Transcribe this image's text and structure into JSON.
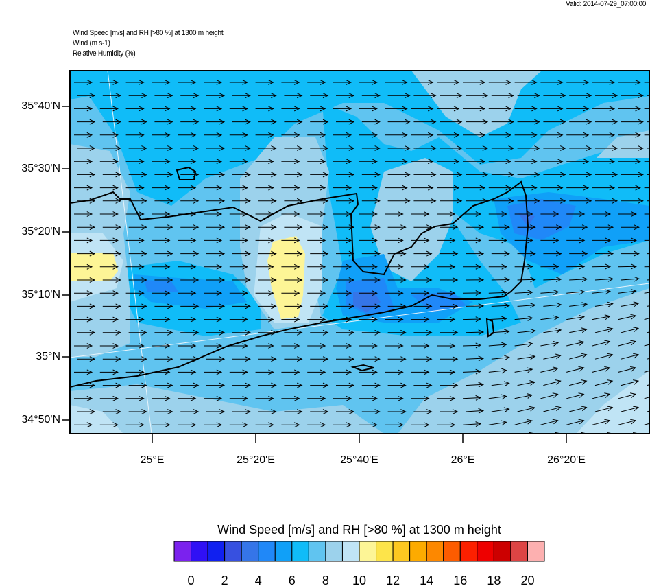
{
  "valid_time": "Valid: 2014-07-29_07:00:00",
  "header": {
    "line1": "Wind Speed [m/s] and RH [>80 %] at 1300 m height",
    "line2": "Wind   (m s-1)",
    "line3": "Relative Humidity   (%)"
  },
  "map": {
    "lat_ticks": [
      "35°40'N",
      "35°30'N",
      "35°20'N",
      "35°10'N",
      "35°N",
      "34°50'N"
    ],
    "lon_ticks": [
      "25°E",
      "25°20'E",
      "25°40'E",
      "26°E",
      "26°20'E"
    ],
    "wind_direction": "westerly (arrows pointing east)"
  },
  "colorbar": {
    "title": "Wind Speed [m/s] and RH [>80 %] at 1300 m height",
    "labels": [
      "0",
      "2",
      "4",
      "6",
      "8",
      "10",
      "12",
      "14",
      "16",
      "18",
      "20"
    ],
    "colors": [
      "#7b22ee",
      "#3010f5",
      "#1020f0",
      "#3750e0",
      "#3575e8",
      "#2088f8",
      "#10a0f8",
      "#10bcf8",
      "#60c4f0",
      "#9cd2ec",
      "#c0e4f5",
      "#fdf596",
      "#fde44a",
      "#fdc820",
      "#fdab00",
      "#fd8800",
      "#fd5c00",
      "#fd2000",
      "#ee0000",
      "#cc0000",
      "#dd4444",
      "#fdb0b0"
    ]
  }
}
